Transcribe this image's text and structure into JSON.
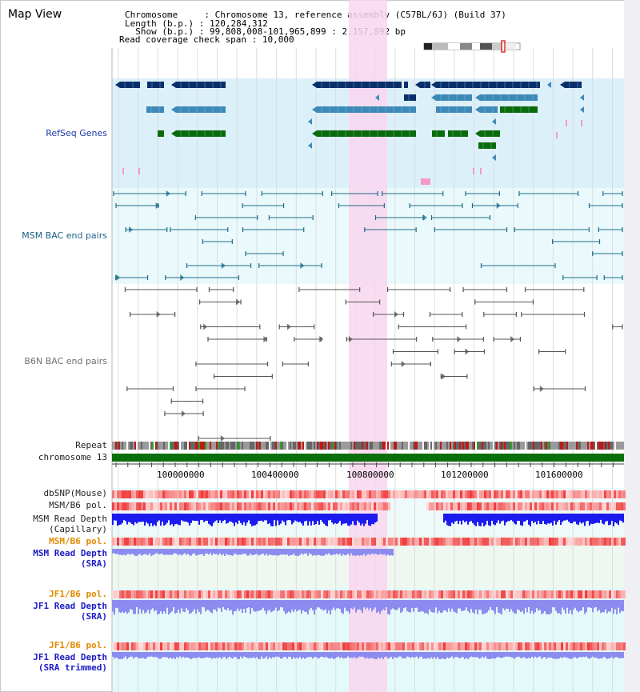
{
  "view_title": "Map View",
  "info": {
    "chromosome_label": "Chromosome",
    "chromosome_value": "Chromosome 13, reference assembly (C57BL/6J) (Build 37)",
    "length_label": "Length (b.p.)",
    "length_value": "120,284,312",
    "show_label": "Show (b.p.)",
    "show_value": "99,808,008-101,965,899 : 2,157,892 bp",
    "coverage_label": "Read coverage check span",
    "coverage_value": "10,000"
  },
  "tracks": {
    "refseq": "RefSeq Genes",
    "msm_bac": "MSM BAC end pairs",
    "b6n_bac": "B6N BAC end pairs",
    "repeat": "Repeat",
    "chromosome": "chromosome 13",
    "dbsnp": "dbSNP(Mouse)",
    "msm_b6_pol_1": "MSM/B6 pol.",
    "msm_depth_cap_1": "MSM Read Depth",
    "msm_depth_cap_2": "(Capillary)",
    "msm_b6_pol_2": "MSM/B6 pol.",
    "msm_depth_sra_1": "MSM Read Depth",
    "msm_depth_sra_2": "(SRA)",
    "jf1_b6_pol_1": "JF1/B6 pol.",
    "jf1_depth_sra_1": "JF1 Read Depth",
    "jf1_depth_sra_2": "(SRA)",
    "jf1_b6_pol_2": "JF1/B6 pol.",
    "jf1_depth_trim_1": "JF1 Read Depth",
    "jf1_depth_trim_2": "(SRA trimmed)"
  },
  "axis_ticks": [
    "100000000",
    "100400000",
    "100800000",
    "101200000",
    "101600000"
  ],
  "colors": {
    "refseq_dark": "#0a2f6b",
    "refseq_mid": "#3d8ab8",
    "refseq_green": "#0a6b0a",
    "msm_line": "#1e6a8a",
    "b6n_line": "#555555",
    "highlight": "#f9d6ef",
    "depth_blue": "#1b1bf0",
    "depth_light": "#8c8cf0"
  }
}
